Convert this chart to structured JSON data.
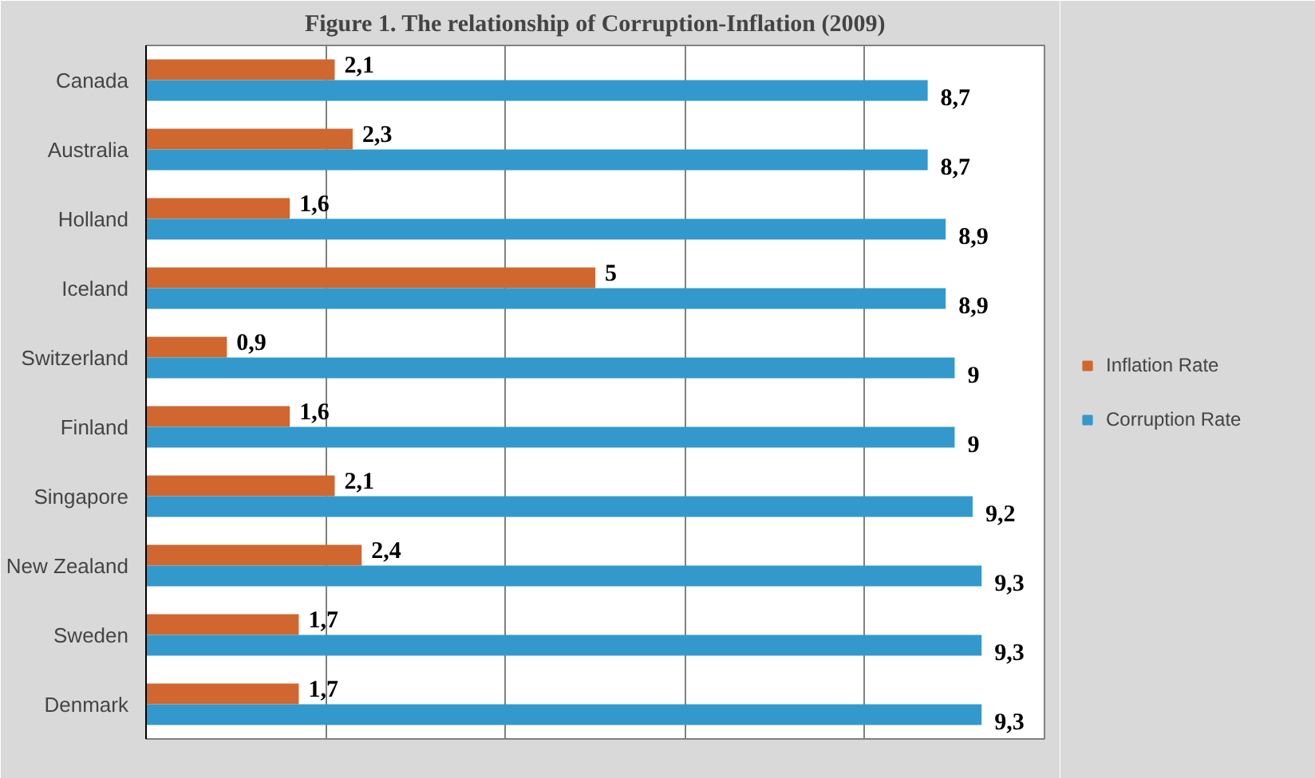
{
  "chart_data": {
    "type": "bar",
    "orientation": "horizontal",
    "title": "Figure 1. The relationship of Corruption-Inflation (2009)",
    "categories": [
      "Canada",
      "Australia",
      "Holland",
      "Iceland",
      "Switzerland",
      "Finland",
      "Singapore",
      "New Zealand",
      "Sweden",
      "Denmark"
    ],
    "series": [
      {
        "name": "Inflation Rate",
        "color": "#d0672f",
        "values": [
          2.1,
          2.3,
          1.6,
          5,
          0.9,
          1.6,
          2.1,
          2.4,
          1.7,
          1.7
        ],
        "value_labels": [
          "2,1",
          "2,3",
          "1,6",
          "5",
          "0,9",
          "1,6",
          "2,1",
          "2,4",
          "1,7",
          "1,7"
        ]
      },
      {
        "name": "Corruption Rate",
        "color": "#3399cc",
        "values": [
          8.7,
          8.7,
          8.9,
          8.9,
          9,
          9,
          9.2,
          9.3,
          9.3,
          9.3
        ],
        "value_labels": [
          "8,7",
          "8,7",
          "8,9",
          "8,9",
          "9",
          "9",
          "9,2",
          "9,3",
          "9,3",
          "9,3"
        ]
      }
    ],
    "xlim": [
      0,
      10
    ],
    "xticks": [
      {
        "value": 0,
        "label": null
      },
      {
        "value": 2,
        "label": null
      },
      {
        "value": 4,
        "label": null
      },
      {
        "value": 6,
        "label": null
      },
      {
        "value": 8,
        "label": null
      },
      {
        "value": 10,
        "label": null
      }
    ],
    "grid": "x",
    "tick_labels": "y",
    "legend": "right"
  }
}
